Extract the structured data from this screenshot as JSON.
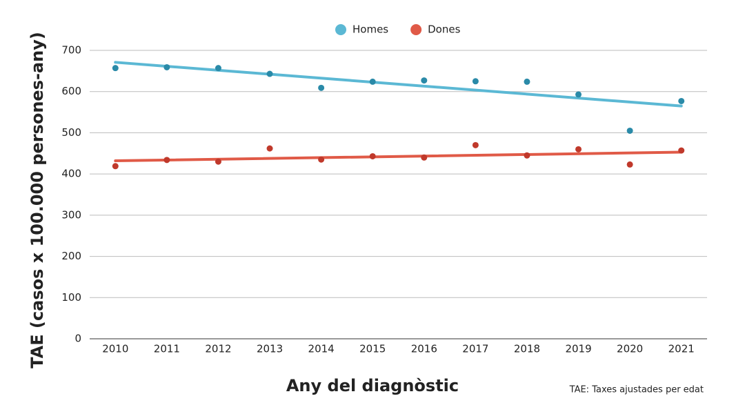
{
  "chart_data": {
    "type": "scatter",
    "x_label": "Any del diagnòstic",
    "y_label": "TAE (casos x 100.000 persones-any)",
    "note": "TAE: Taxes ajustades per edat",
    "categories": [
      "2010",
      "2011",
      "2012",
      "2013",
      "2014",
      "2015",
      "2016",
      "2017",
      "2018",
      "2019",
      "2020",
      "2021"
    ],
    "series": [
      {
        "name": "Homes",
        "color": "#5bb8d4",
        "point_color": "#2a8aa8",
        "values": [
          657,
          659,
          657,
          643,
          609,
          624,
          627,
          625,
          624,
          593,
          505,
          577
        ],
        "trend": [
          671,
          565
        ]
      },
      {
        "name": "Dones",
        "color": "#e05a47",
        "point_color": "#c0392b",
        "values": [
          419,
          434,
          430,
          462,
          435,
          443,
          440,
          470,
          445,
          460,
          423,
          457
        ],
        "trend": [
          432,
          453
        ]
      }
    ],
    "ylim": [
      0,
      700
    ],
    "yticks": [
      0,
      100,
      200,
      300,
      400,
      500,
      600,
      700
    ],
    "grid": true
  }
}
